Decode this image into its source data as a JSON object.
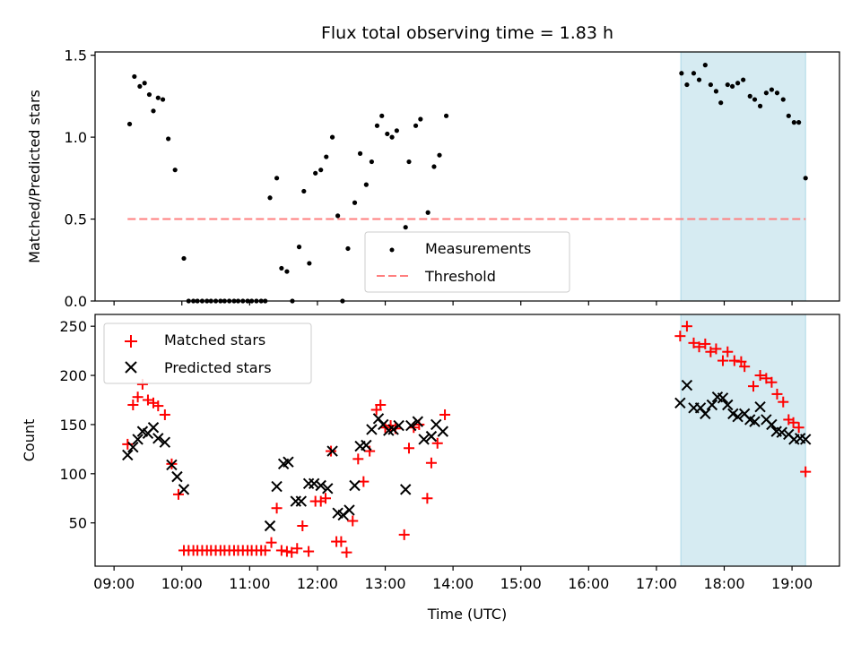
{
  "chart_data": {
    "title": "Flux total observing time = 1.83 h",
    "xlabel": "Time (UTC)",
    "x_tick_labels": [
      "09:00",
      "10:00",
      "11:00",
      "12:00",
      "13:00",
      "14:00",
      "15:00",
      "16:00",
      "17:00",
      "18:00",
      "19:00"
    ],
    "x_ticks_hours": [
      9,
      10,
      11,
      12,
      13,
      14,
      15,
      16,
      17,
      18,
      19
    ],
    "xlim_hours": [
      8.72,
      19.7
    ],
    "highlight_span_hours": [
      17.36,
      19.2
    ],
    "highlight_color": "#add8e6",
    "panels": [
      {
        "type": "scatter",
        "ylabel": "Matched/Predicted stars",
        "ylim": [
          0,
          1.52
        ],
        "y_ticks": [
          0.0,
          0.5,
          1.0,
          1.5
        ],
        "y_tick_labels": [
          "0.0",
          "0.5",
          "1.0",
          "1.5"
        ],
        "legend_position": "bottom-center",
        "threshold": {
          "name": "Threshold",
          "value": 0.5,
          "x_range_hours": [
            9.2,
            19.2
          ],
          "color": "#ff7f7f"
        },
        "series": [
          {
            "name": "Measurements",
            "marker": "dot",
            "color": "#000000",
            "points": [
              [
                9.23,
                1.08
              ],
              [
                9.3,
                1.37
              ],
              [
                9.38,
                1.31
              ],
              [
                9.45,
                1.33
              ],
              [
                9.52,
                1.26
              ],
              [
                9.58,
                1.16
              ],
              [
                9.65,
                1.24
              ],
              [
                9.72,
                1.23
              ],
              [
                9.8,
                0.99
              ],
              [
                9.9,
                0.8
              ],
              [
                10.03,
                0.26
              ],
              [
                10.1,
                0.0
              ],
              [
                10.17,
                0.0
              ],
              [
                10.23,
                0.0
              ],
              [
                10.3,
                0.0
              ],
              [
                10.37,
                0.0
              ],
              [
                10.43,
                0.0
              ],
              [
                10.5,
                0.0
              ],
              [
                10.57,
                0.0
              ],
              [
                10.63,
                0.0
              ],
              [
                10.7,
                0.0
              ],
              [
                10.77,
                0.0
              ],
              [
                10.83,
                0.0
              ],
              [
                10.9,
                0.0
              ],
              [
                10.97,
                0.0
              ],
              [
                11.03,
                0.0
              ],
              [
                11.1,
                0.0
              ],
              [
                11.17,
                0.0
              ],
              [
                11.23,
                0.0
              ],
              [
                11.3,
                0.63
              ],
              [
                11.4,
                0.75
              ],
              [
                11.47,
                0.2
              ],
              [
                11.55,
                0.18
              ],
              [
                11.63,
                0.0
              ],
              [
                11.73,
                0.33
              ],
              [
                11.8,
                0.67
              ],
              [
                11.88,
                0.23
              ],
              [
                11.97,
                0.78
              ],
              [
                12.05,
                0.8
              ],
              [
                12.13,
                0.88
              ],
              [
                12.22,
                1.0
              ],
              [
                12.3,
                0.52
              ],
              [
                12.37,
                0.0
              ],
              [
                12.45,
                0.32
              ],
              [
                12.55,
                0.6
              ],
              [
                12.63,
                0.9
              ],
              [
                12.72,
                0.71
              ],
              [
                12.8,
                0.85
              ],
              [
                12.88,
                1.07
              ],
              [
                12.95,
                1.13
              ],
              [
                13.03,
                1.02
              ],
              [
                13.1,
                1.0
              ],
              [
                13.17,
                1.04
              ],
              [
                13.3,
                0.45
              ],
              [
                13.35,
                0.85
              ],
              [
                13.45,
                1.07
              ],
              [
                13.52,
                1.11
              ],
              [
                13.63,
                0.54
              ],
              [
                13.72,
                0.82
              ],
              [
                13.8,
                0.89
              ],
              [
                13.9,
                1.13
              ],
              [
                17.37,
                1.39
              ],
              [
                17.45,
                1.32
              ],
              [
                17.55,
                1.39
              ],
              [
                17.63,
                1.35
              ],
              [
                17.72,
                1.44
              ],
              [
                17.8,
                1.32
              ],
              [
                17.88,
                1.28
              ],
              [
                17.95,
                1.21
              ],
              [
                18.05,
                1.32
              ],
              [
                18.12,
                1.31
              ],
              [
                18.2,
                1.33
              ],
              [
                18.28,
                1.35
              ],
              [
                18.38,
                1.25
              ],
              [
                18.45,
                1.23
              ],
              [
                18.53,
                1.19
              ],
              [
                18.62,
                1.27
              ],
              [
                18.7,
                1.29
              ],
              [
                18.78,
                1.27
              ],
              [
                18.87,
                1.23
              ],
              [
                18.95,
                1.13
              ],
              [
                19.03,
                1.09
              ],
              [
                19.1,
                1.09
              ],
              [
                19.2,
                0.75
              ]
            ]
          }
        ]
      },
      {
        "type": "scatter",
        "ylabel": "Count",
        "ylim": [
          6,
          262
        ],
        "y_ticks": [
          50,
          100,
          150,
          200,
          250
        ],
        "y_tick_labels": [
          "50",
          "100",
          "150",
          "200",
          "250"
        ],
        "legend_position": "top-left",
        "series": [
          {
            "name": "Matched stars",
            "marker": "plus",
            "color": "#ff0000",
            "points": [
              [
                9.2,
                130
              ],
              [
                9.28,
                170
              ],
              [
                9.35,
                178
              ],
              [
                9.42,
                191
              ],
              [
                9.5,
                175
              ],
              [
                9.58,
                172
              ],
              [
                9.65,
                169
              ],
              [
                9.75,
                160
              ],
              [
                9.85,
                110
              ],
              [
                9.95,
                79
              ],
              [
                10.03,
                22
              ],
              [
                10.1,
                22
              ],
              [
                10.17,
                22
              ],
              [
                10.23,
                22
              ],
              [
                10.3,
                22
              ],
              [
                10.37,
                22
              ],
              [
                10.43,
                22
              ],
              [
                10.5,
                22
              ],
              [
                10.57,
                22
              ],
              [
                10.63,
                22
              ],
              [
                10.7,
                22
              ],
              [
                10.77,
                22
              ],
              [
                10.83,
                22
              ],
              [
                10.9,
                22
              ],
              [
                10.97,
                22
              ],
              [
                11.03,
                22
              ],
              [
                11.1,
                22
              ],
              [
                11.17,
                22
              ],
              [
                11.23,
                22
              ],
              [
                11.32,
                30
              ],
              [
                11.4,
                65
              ],
              [
                11.47,
                22
              ],
              [
                11.55,
                21
              ],
              [
                11.62,
                20
              ],
              [
                11.7,
                24
              ],
              [
                11.78,
                47
              ],
              [
                11.87,
                21
              ],
              [
                11.97,
                72
              ],
              [
                12.05,
                72
              ],
              [
                12.12,
                75
              ],
              [
                12.2,
                123
              ],
              [
                12.28,
                31
              ],
              [
                12.35,
                31
              ],
              [
                12.43,
                20
              ],
              [
                12.52,
                52
              ],
              [
                12.6,
                115
              ],
              [
                12.68,
                92
              ],
              [
                12.77,
                123
              ],
              [
                12.87,
                165
              ],
              [
                12.93,
                170
              ],
              [
                13.0,
                147
              ],
              [
                13.08,
                149
              ],
              [
                13.15,
                146
              ],
              [
                13.28,
                38
              ],
              [
                13.35,
                126
              ],
              [
                13.42,
                147
              ],
              [
                13.5,
                150
              ],
              [
                13.62,
                75
              ],
              [
                13.68,
                111
              ],
              [
                13.77,
                131
              ],
              [
                13.88,
                160
              ],
              [
                17.35,
                240
              ],
              [
                17.45,
                250
              ],
              [
                17.55,
                233
              ],
              [
                17.63,
                229
              ],
              [
                17.72,
                232
              ],
              [
                17.8,
                224
              ],
              [
                17.88,
                227
              ],
              [
                17.98,
                215
              ],
              [
                18.05,
                224
              ],
              [
                18.15,
                215
              ],
              [
                18.25,
                214
              ],
              [
                18.3,
                209
              ],
              [
                18.43,
                189
              ],
              [
                18.53,
                200
              ],
              [
                18.62,
                197
              ],
              [
                18.7,
                193
              ],
              [
                18.78,
                181
              ],
              [
                18.87,
                173
              ],
              [
                18.95,
                155
              ],
              [
                19.02,
                152
              ],
              [
                19.1,
                147
              ],
              [
                19.2,
                102
              ]
            ]
          },
          {
            "name": "Predicted stars",
            "marker": "x",
            "color": "#000000",
            "points": [
              [
                9.2,
                119
              ],
              [
                9.28,
                127
              ],
              [
                9.35,
                135
              ],
              [
                9.42,
                143
              ],
              [
                9.5,
                141
              ],
              [
                9.58,
                147
              ],
              [
                9.65,
                136
              ],
              [
                9.75,
                132
              ],
              [
                9.85,
                109
              ],
              [
                9.93,
                97
              ],
              [
                10.03,
                84
              ],
              [
                11.3,
                47
              ],
              [
                11.4,
                87
              ],
              [
                11.5,
                110
              ],
              [
                11.57,
                112
              ],
              [
                11.68,
                72
              ],
              [
                11.76,
                72
              ],
              [
                11.87,
                90
              ],
              [
                11.95,
                90
              ],
              [
                12.05,
                88
              ],
              [
                12.15,
                85
              ],
              [
                12.22,
                123
              ],
              [
                12.3,
                60
              ],
              [
                12.38,
                58
              ],
              [
                12.47,
                63
              ],
              [
                12.55,
                88
              ],
              [
                12.63,
                128
              ],
              [
                12.72,
                129
              ],
              [
                12.8,
                145
              ],
              [
                12.9,
                156
              ],
              [
                12.97,
                150
              ],
              [
                13.05,
                144
              ],
              [
                13.12,
                145
              ],
              [
                13.2,
                149
              ],
              [
                13.3,
                84
              ],
              [
                13.38,
                149
              ],
              [
                13.48,
                153
              ],
              [
                13.57,
                135
              ],
              [
                13.68,
                138
              ],
              [
                13.75,
                150
              ],
              [
                13.85,
                143
              ],
              [
                17.35,
                172
              ],
              [
                17.45,
                190
              ],
              [
                17.55,
                167
              ],
              [
                17.65,
                167
              ],
              [
                17.72,
                161
              ],
              [
                17.82,
                170
              ],
              [
                17.9,
                178
              ],
              [
                17.98,
                177
              ],
              [
                18.05,
                170
              ],
              [
                18.13,
                161
              ],
              [
                18.2,
                158
              ],
              [
                18.3,
                161
              ],
              [
                18.38,
                155
              ],
              [
                18.45,
                153
              ],
              [
                18.53,
                168
              ],
              [
                18.62,
                155
              ],
              [
                18.7,
                150
              ],
              [
                18.77,
                143
              ],
              [
                18.85,
                142
              ],
              [
                18.95,
                140
              ],
              [
                19.03,
                135
              ],
              [
                19.12,
                136
              ],
              [
                19.2,
                135
              ]
            ]
          }
        ]
      }
    ]
  }
}
